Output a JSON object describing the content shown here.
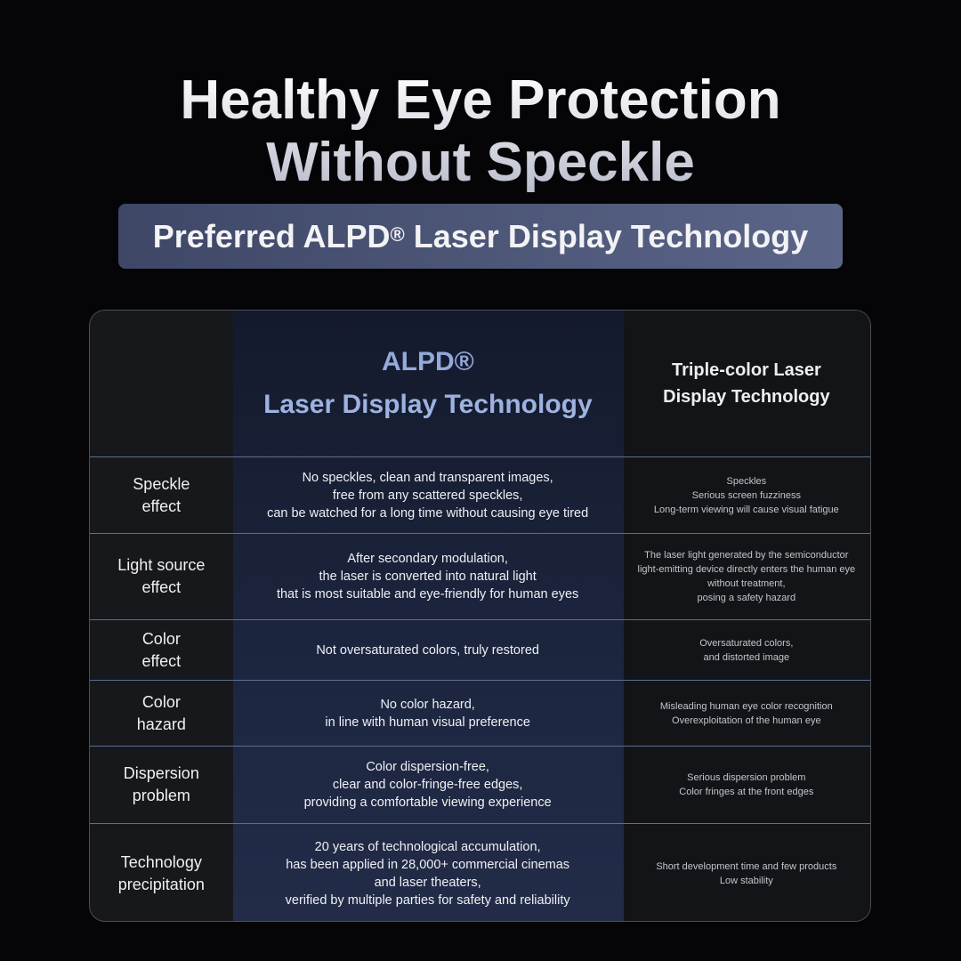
{
  "title_line1": "Healthy Eye Protection",
  "title_line2": "Without Speckle",
  "subtitle": {
    "pre": "Preferred ALPD",
    "mark": "®",
    "post": " Laser Display Technology"
  },
  "header": {
    "alpd_line1": "ALPD®",
    "alpd_line2": "Laser Display Technology",
    "triple": "Triple-color Laser\nDisplay Technology"
  },
  "rows": [
    {
      "label": "Speckle\neffect",
      "alpd": "No speckles, clean and transparent images,\nfree from any scattered speckles,\ncan be watched for a long time without causing eye tired",
      "triple": "Speckles\nSerious screen fuzziness\nLong-term viewing will cause visual fatigue"
    },
    {
      "label": "Light source\neffect",
      "alpd": "After secondary modulation,\nthe laser is converted into natural light\nthat is most suitable and eye-friendly for human eyes",
      "triple": "The laser light generated by the semiconductor\nlight-emitting device directly enters the human eye\nwithout treatment,\nposing a safety hazard"
    },
    {
      "label": "Color\neffect",
      "alpd": "Not oversaturated colors, truly restored",
      "triple": "Oversaturated colors,\nand distorted image"
    },
    {
      "label": "Color\nhazard",
      "alpd": "No color hazard,\nin line with human visual preference",
      "triple": "Misleading human eye color recognition\nOverexploitation of the human eye"
    },
    {
      "label": "Dispersion\nproblem",
      "alpd": "Color dispersion-free,\nclear and color-fringe-free edges,\nproviding a comfortable viewing experience",
      "triple": "Serious dispersion problem\nColor fringes at the front edges"
    },
    {
      "label": "Technology\nprecipitation",
      "alpd": "20 years of technological accumulation,\nhas been applied in 28,000+ commercial cinemas\nand laser theaters,\nverified by multiple parties for safety and reliability",
      "triple": "Short development time and few products\nLow stability"
    }
  ]
}
